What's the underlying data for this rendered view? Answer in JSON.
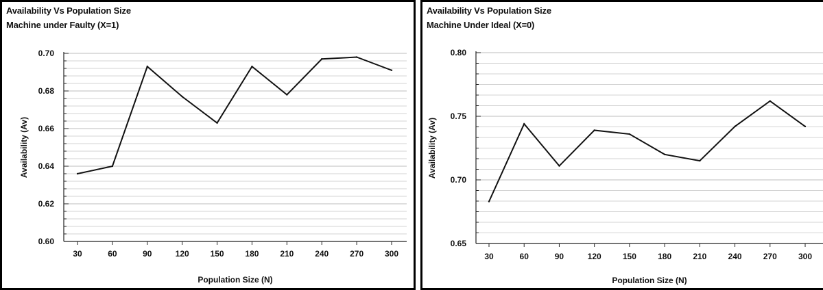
{
  "chart_data": [
    {
      "type": "line",
      "title": "Availability Vs Population Size",
      "subtitle": "Machine under Faulty (X=1)",
      "xlabel": "Population Size (N)",
      "ylabel": "Availability (Av)",
      "x": [
        30,
        60,
        90,
        120,
        150,
        180,
        210,
        240,
        270,
        300
      ],
      "yticks": [
        "0.60",
        "0.62",
        "0.64",
        "0.66",
        "0.68",
        "0.70"
      ],
      "ylim": [
        0.6,
        0.7
      ],
      "grid": true,
      "series": [
        {
          "values": [
            0.636,
            0.64,
            0.693,
            0.677,
            0.663,
            0.693,
            0.678,
            0.697,
            0.698,
            0.691
          ]
        }
      ],
      "line_color": "#111111",
      "grid_color": "#d3d3d3"
    },
    {
      "type": "line",
      "title": "Availability Vs Population Size",
      "subtitle": "Machine Under Ideal (X=0)",
      "xlabel": "Population Size (N)",
      "ylabel": "Availability (Av)",
      "x": [
        30,
        60,
        90,
        120,
        150,
        180,
        210,
        240,
        270,
        300
      ],
      "yticks": [
        "0.65",
        "0.70",
        "0.75",
        "0.80"
      ],
      "ylim": [
        0.65,
        0.8
      ],
      "grid": true,
      "series": [
        {
          "values": [
            0.683,
            0.744,
            0.711,
            0.739,
            0.736,
            0.72,
            0.715,
            0.742,
            0.762,
            0.742
          ]
        }
      ],
      "line_color": "#111111",
      "grid_color": "#d3d3d3"
    }
  ]
}
